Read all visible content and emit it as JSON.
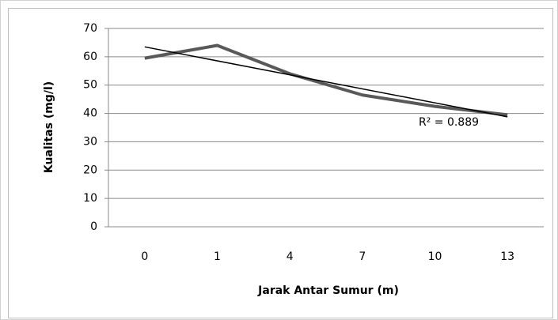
{
  "chart_data": {
    "type": "line",
    "x_label": "Jarak Antar Sumur (m)",
    "y_label": "Kualitas (mg/l)",
    "categories": [
      "0",
      "1",
      "4",
      "7",
      "10",
      "13"
    ],
    "series": [
      {
        "color": "#595959",
        "values": [
          59.5,
          64,
          54,
          46.5,
          42.5,
          39.5
        ]
      }
    ],
    "trendline": {
      "color": "#000000",
      "values": [
        63.5,
        38.8
      ]
    },
    "annotation": "R² = 0.889",
    "ylim": [
      0,
      70
    ],
    "yticks": [
      0,
      10,
      20,
      30,
      40,
      50,
      60,
      70
    ],
    "grid": true
  }
}
